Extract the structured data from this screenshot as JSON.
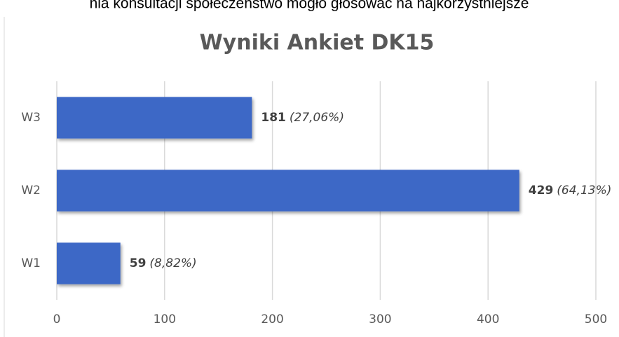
{
  "caption": "nia konsultacji społeczeństwo mogło głosować na najkorzystniejsze",
  "chart_data": {
    "type": "bar",
    "orientation": "horizontal",
    "title": "Wyniki Ankiet DK15",
    "categories": [
      "W1",
      "W2",
      "W3"
    ],
    "values": [
      59,
      429,
      181
    ],
    "share_labels": [
      "(8,82%)",
      "(64,13%)",
      "(27,06%)"
    ],
    "color": "#3d68c6",
    "xlim": [
      0,
      500
    ],
    "xticks": [
      0,
      100,
      200,
      300,
      400,
      500
    ],
    "grid": true
  }
}
